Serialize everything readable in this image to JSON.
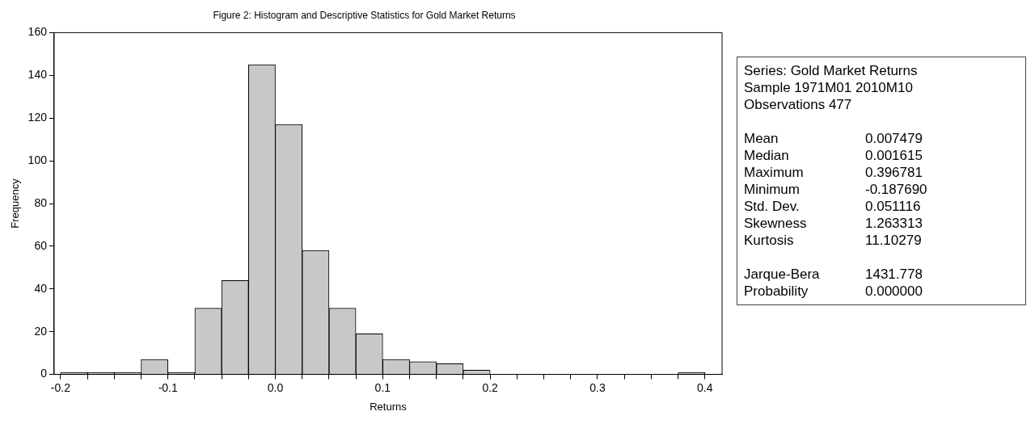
{
  "chart_data": [
    {
      "type": "histogram",
      "title": "Figure 2: Histogram and Descriptive Statistics for Gold Market Returns",
      "xlabel": "Returns",
      "ylabel": "Frequency",
      "bins": [
        -0.2,
        -0.175,
        -0.15,
        -0.125,
        -0.1,
        -0.075,
        -0.05,
        -0.025,
        0,
        0.025,
        0.05,
        0.075,
        0.1,
        0.125,
        0.15,
        0.175,
        0.2,
        0.225,
        0.25,
        0.275,
        0.3,
        0.325,
        0.35,
        0.375,
        0.4
      ],
      "values": [
        1,
        1,
        1,
        7,
        1,
        31,
        44,
        145,
        117,
        58,
        31,
        19,
        7,
        6,
        5,
        2,
        0,
        0,
        0,
        0,
        0,
        0,
        0,
        1
      ],
      "color": "#c8c8c8",
      "xlim": [
        -0.206,
        0.416
      ],
      "xticks": [
        {
          "value": -0.2,
          "label": "-0.2"
        },
        {
          "value": -0.175,
          "label": null
        },
        {
          "value": -0.15,
          "label": null
        },
        {
          "value": -0.125,
          "label": null
        },
        {
          "value": -0.1,
          "label": "-0.1"
        },
        {
          "value": -0.075,
          "label": null
        },
        {
          "value": -0.05,
          "label": null
        },
        {
          "value": -0.025,
          "label": null
        },
        {
          "value": 0,
          "label": "0.0"
        },
        {
          "value": 0.025,
          "label": null
        },
        {
          "value": 0.05,
          "label": null
        },
        {
          "value": 0.075,
          "label": null
        },
        {
          "value": 0.1,
          "label": "0.1"
        },
        {
          "value": 0.125,
          "label": null
        },
        {
          "value": 0.15,
          "label": null
        },
        {
          "value": 0.175,
          "label": null
        },
        {
          "value": 0.2,
          "label": "0.2"
        },
        {
          "value": 0.225,
          "label": null
        },
        {
          "value": 0.25,
          "label": null
        },
        {
          "value": 0.275,
          "label": null
        },
        {
          "value": 0.3,
          "label": "0.3"
        },
        {
          "value": 0.325,
          "label": null
        },
        {
          "value": 0.35,
          "label": null
        },
        {
          "value": 0.375,
          "label": null
        },
        {
          "value": 0.4,
          "label": "0.4"
        }
      ],
      "ylim": [
        0,
        160
      ],
      "yticks": [
        0,
        20,
        40,
        60,
        80,
        100,
        120,
        140,
        160
      ],
      "grid": false,
      "legend": false
    },
    {
      "type": "other",
      "annotations": [
        "Series: Gold Market Returns",
        "Sample 1971M01 2010M10",
        "Observations 477",
        "Mean",
        "0.007479",
        "Median",
        "0.001615",
        "Maximum",
        "0.396781",
        "Minimum",
        "-0.187690",
        "Std. Dev.",
        "0.051116",
        "Skewness",
        "1.263313",
        "Kurtosis",
        "11.10279",
        "Jarque-Bera",
        "1431.778",
        "Probability",
        "0.000000"
      ]
    }
  ]
}
